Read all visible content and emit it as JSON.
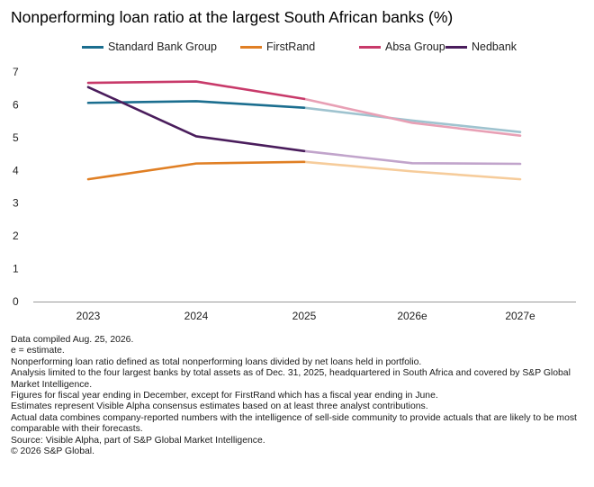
{
  "title": "Nonperforming loan ratio at the largest South African banks (%)",
  "chart_data": {
    "type": "line",
    "title": "Nonperforming loan ratio at the largest South African banks (%)",
    "categories": [
      "2023",
      "2024",
      "2025",
      "2026e",
      "2027e"
    ],
    "ylim": [
      0,
      7
    ],
    "yticks": [
      0,
      1,
      2,
      3,
      4,
      5,
      6,
      7
    ],
    "grid": false,
    "legend_position": "top",
    "actual_through_index": 2,
    "series": [
      {
        "name": "Standard Bank Group",
        "color": "#1b6e8f",
        "estimate_color": "#9fc3cf",
        "values": [
          6.06,
          6.11,
          5.91,
          5.52,
          5.17
        ]
      },
      {
        "name": "FirstRand",
        "color": "#e07f24",
        "estimate_color": "#f6cc9b",
        "values": [
          3.73,
          4.21,
          4.26,
          3.97,
          3.73
        ]
      },
      {
        "name": "Absa Group",
        "color": "#c83a6a",
        "estimate_color": "#e8a0b5",
        "values": [
          6.67,
          6.71,
          6.18,
          5.45,
          5.06
        ]
      },
      {
        "name": "Nedbank",
        "color": "#4a1d5c",
        "estimate_color": "#c1a4cb",
        "values": [
          6.54,
          5.04,
          4.59,
          4.22,
          4.2
        ]
      }
    ]
  },
  "notes": [
    "Data compiled Aug. 25, 2026.",
    "e = estimate.",
    "Nonperforming loan ratio defined as total nonperforming loans divided by net loans held in portfolio.",
    "Analysis limited to the four largest banks by total assets as of Dec. 31, 2025, headquartered in South Africa and covered by S&P Global Market Intelligence.",
    "Figures for fiscal year ending in December, except for FirstRand which has a fiscal year ending in June.",
    "Estimates represent Visible Alpha consensus estimates based on at least three analyst contributions.",
    "Actual data combines company-reported numbers with the intelligence of sell-side community to provide actuals that are likely to be most comparable with their forecasts.",
    "Source: Visible Alpha, part of S&P Global Market Intelligence.",
    "© 2026 S&P Global."
  ]
}
